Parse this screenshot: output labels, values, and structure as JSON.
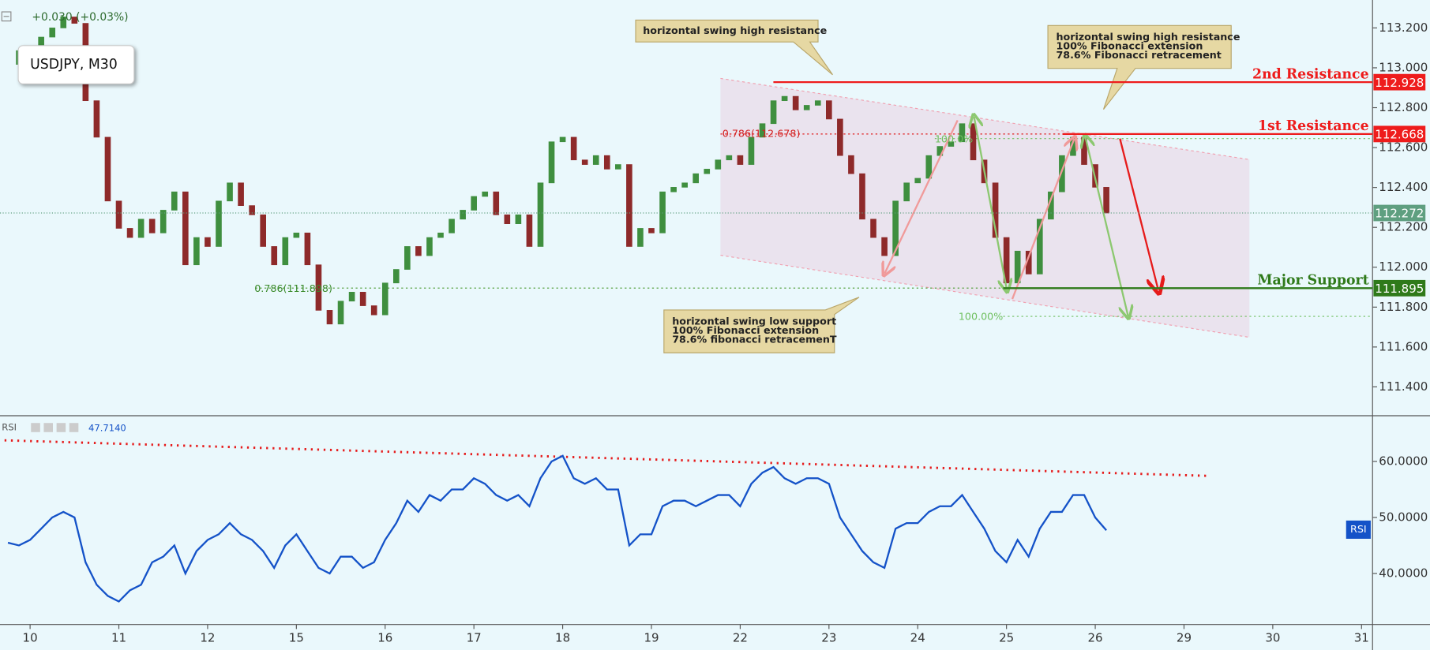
{
  "chart_data": [
    {
      "type": "candlestick",
      "symbol": "USDJPY, M30",
      "change": "+0.030 (+0.03%)",
      "x": [
        -0.25,
        -0.125,
        0,
        0.125,
        0.25,
        0.375,
        0.5,
        0.625,
        0.75,
        0.875,
        1,
        1.125,
        1.25,
        1.375,
        1.5,
        1.625,
        1.75,
        1.875,
        2,
        2.125,
        2.25,
        2.375,
        2.5,
        2.625,
        2.75,
        2.875,
        3,
        3.125,
        3.25,
        3.375,
        3.5,
        3.625,
        3.75,
        3.875,
        4,
        4.125,
        4.25,
        4.375,
        4.5,
        4.625,
        4.75,
        4.875,
        5,
        5.125,
        5.25,
        5.375,
        5.5,
        5.625,
        5.75,
        5.875,
        6,
        6.125,
        6.25,
        6.375,
        6.5,
        6.625,
        6.75,
        6.875,
        7,
        7.125,
        7.25,
        7.375,
        7.5,
        7.625,
        7.75,
        7.875,
        8,
        8.125,
        8.25,
        8.375,
        8.5,
        8.625,
        8.75,
        8.875,
        9,
        9.125,
        9.25,
        9.375,
        9.5,
        9.625,
        9.75,
        9.875,
        10,
        10.125,
        10.25,
        10.375,
        10.5,
        10.625,
        10.75,
        10.875,
        11,
        11.125,
        11.25,
        11.375,
        11.5,
        11.625,
        11.75,
        11.875,
        12,
        12.125
      ],
      "xlim": [
        -0.339,
        15.124
      ],
      "series": [
        {
          "up_color": "#3f8f3f",
          "down_color": "#8e2a2a",
          "values": [
            113.017,
            113.086,
            112.949,
            113.154,
            113.2,
            113.255,
            113.223,
            112.835,
            112.652,
            112.332,
            112.195,
            112.149,
            112.241,
            112.172,
            112.286,
            112.378,
            112.012,
            112.149,
            112.104,
            112.332,
            112.423,
            112.309,
            112.263,
            112.104,
            112.012,
            112.149,
            112.172,
            112.012,
            111.784,
            111.715,
            111.83,
            111.875,
            111.807,
            111.761,
            111.921,
            111.989,
            112.104,
            112.058,
            112.149,
            112.172,
            112.241,
            112.286,
            112.355,
            112.378,
            112.263,
            112.218,
            112.263,
            112.104,
            112.423,
            112.629,
            112.652,
            112.538,
            112.515,
            112.56,
            112.492,
            112.515,
            112.104,
            112.195,
            112.172,
            112.378,
            112.401,
            112.423,
            112.469,
            112.492,
            112.538,
            112.56,
            112.515,
            112.652,
            112.72,
            112.835,
            112.857,
            112.789,
            112.812,
            112.835,
            112.743,
            112.56,
            112.469,
            112.241,
            112.149,
            112.058,
            112.332,
            112.423,
            112.446,
            112.56,
            112.606,
            112.629,
            112.72,
            112.538,
            112.423,
            112.149,
            111.921,
            112.081,
            111.966,
            112.241,
            112.378,
            112.56,
            112.652,
            112.515,
            112.401,
            112.272
          ]
        }
      ],
      "ylim": [
        111.26,
        113.34
      ],
      "yticks": [
        {
          "value": 111.4,
          "label": "111.400"
        },
        {
          "value": 111.6,
          "label": "111.600"
        },
        {
          "value": 111.8,
          "label": "111.800"
        },
        {
          "value": 112,
          "label": "112.000"
        },
        {
          "value": 112.2,
          "label": "112.200"
        },
        {
          "value": 112.4,
          "label": "112.400"
        },
        {
          "value": 112.6,
          "label": "112.600"
        },
        {
          "value": 112.8,
          "label": "112.800"
        },
        {
          "value": 113,
          "label": "113.000"
        },
        {
          "value": 113.2,
          "label": "113.200"
        }
      ],
      "levels": [
        {
          "name": "2nd Resistance",
          "value": 112.928,
          "color": "#ee1c1c"
        },
        {
          "name": "1st Resistance",
          "value": 112.668,
          "color": "#ee1c1c"
        },
        {
          "name": "Major Support",
          "value": 111.895,
          "color": "#2f7a1a"
        },
        {
          "value": 112.272,
          "color": "#5f9f80"
        }
      ],
      "fib_labels": [
        "0.786(112.678)",
        "0.786(111.898)",
        "100.0%",
        "100.00%"
      ],
      "annotations": [
        [
          "horizontal swing high resistance"
        ],
        [
          "horizontal swing high resistance",
          "100% Fibonacci extension",
          "78.6% Fibonacci retracement"
        ],
        [
          "horizontal swing low support",
          "100% Fibonacci extension",
          "78.6% fibonacci retracemenT"
        ]
      ]
    },
    {
      "type": "line",
      "x": [
        -0.25,
        -0.125,
        0,
        0.125,
        0.25,
        0.375,
        0.5,
        0.625,
        0.75,
        0.875,
        1,
        1.125,
        1.25,
        1.375,
        1.5,
        1.625,
        1.75,
        1.875,
        2,
        2.125,
        2.25,
        2.375,
        2.5,
        2.625,
        2.75,
        2.875,
        3,
        3.125,
        3.25,
        3.375,
        3.5,
        3.625,
        3.75,
        3.875,
        4,
        4.125,
        4.25,
        4.375,
        4.5,
        4.625,
        4.75,
        4.875,
        5,
        5.125,
        5.25,
        5.375,
        5.5,
        5.625,
        5.75,
        5.875,
        6,
        6.125,
        6.25,
        6.375,
        6.5,
        6.625,
        6.75,
        6.875,
        7,
        7.125,
        7.25,
        7.375,
        7.5,
        7.625,
        7.75,
        7.875,
        8,
        8.125,
        8.25,
        8.375,
        8.5,
        8.625,
        8.75,
        8.875,
        9,
        9.125,
        9.25,
        9.375,
        9.5,
        9.625,
        9.75,
        9.875,
        10,
        10.125,
        10.25,
        10.375,
        10.5,
        10.625,
        10.75,
        10.875,
        11,
        11.125,
        11.25,
        11.375,
        11.5,
        11.625,
        11.75,
        11.875,
        12,
        12.125
      ],
      "xlim": [
        -0.339,
        15.124
      ],
      "xticks": [
        {
          "value": 0,
          "label": "10"
        },
        {
          "value": 1,
          "label": "11"
        },
        {
          "value": 2,
          "label": "12"
        },
        {
          "value": 3,
          "label": "15"
        },
        {
          "value": 4,
          "label": "16"
        },
        {
          "value": 5,
          "label": "17"
        },
        {
          "value": 6,
          "label": "18"
        },
        {
          "value": 7,
          "label": "19"
        },
        {
          "value": 8,
          "label": "22"
        },
        {
          "value": 9,
          "label": "23"
        },
        {
          "value": 10,
          "label": "24"
        },
        {
          "value": 11,
          "label": "25"
        },
        {
          "value": 12,
          "label": "26"
        },
        {
          "value": 13,
          "label": "29"
        },
        {
          "value": 14,
          "label": "30"
        },
        {
          "value": 15,
          "label": "31"
        }
      ],
      "series": [
        {
          "name": "RSI",
          "readout": "47.7140",
          "color": "#1452c8",
          "values": [
            45.5,
            45,
            46,
            48,
            50,
            51,
            50,
            42,
            38,
            36,
            35,
            37,
            38,
            42,
            43,
            45,
            40,
            44,
            46,
            47,
            49,
            47,
            46,
            44,
            41,
            45,
            47,
            44,
            41,
            40,
            43,
            43,
            41,
            42,
            46,
            49,
            53,
            51,
            54,
            53,
            55,
            55,
            57,
            56,
            54,
            53,
            54,
            52,
            57,
            60,
            61,
            57,
            56,
            57,
            55,
            55,
            45,
            47,
            47,
            52,
            53,
            53,
            52,
            53,
            54,
            54,
            52,
            56,
            58,
            59,
            57,
            56,
            57,
            57,
            56,
            50,
            47,
            44,
            42,
            41,
            48,
            49,
            49,
            51,
            52,
            52,
            54,
            51,
            48,
            44,
            42,
            46,
            43,
            48,
            51,
            51,
            54,
            54,
            50,
            47.714
          ]
        }
      ],
      "ylim": [
        30.9,
        68
      ],
      "yticks": [
        {
          "value": 40,
          "label": "40.0000"
        },
        {
          "value": 50,
          "label": "50.0000"
        },
        {
          "value": 60,
          "label": "60.0000"
        }
      ]
    }
  ]
}
